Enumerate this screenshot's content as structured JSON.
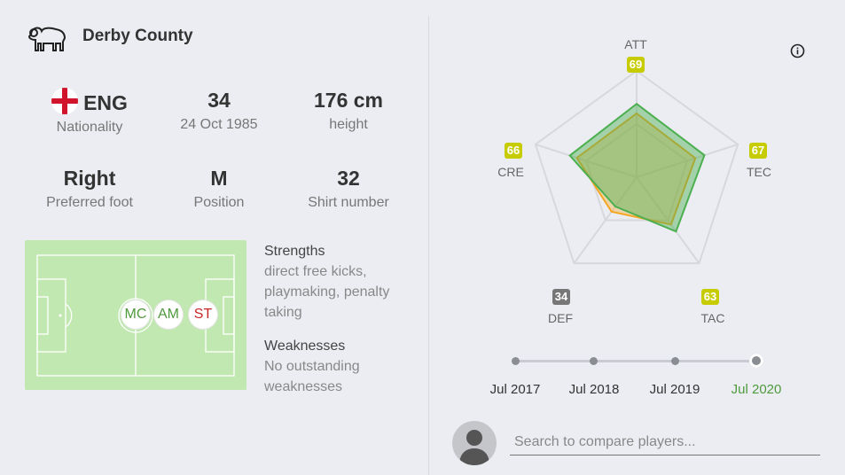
{
  "club": {
    "name": "Derby County",
    "logo_icon": "ram-icon"
  },
  "stats": {
    "nationality": {
      "value": "ENG",
      "label": "Nationality",
      "flag_icon": "england-flag-icon"
    },
    "age": {
      "value": "34",
      "label": "24 Oct 1985"
    },
    "height": {
      "value": "176 cm",
      "label": "height"
    },
    "foot": {
      "value": "Right",
      "label": "Preferred foot"
    },
    "position": {
      "value": "M",
      "label": "Position"
    },
    "shirt": {
      "value": "32",
      "label": "Shirt number"
    }
  },
  "positions": [
    "MC",
    "AM",
    "ST"
  ],
  "strengths": {
    "title": "Strengths",
    "lines": [
      "direct free kicks,",
      "playmaking, penalty",
      "taking"
    ]
  },
  "weaknesses": {
    "title": "Weaknesses",
    "lines": [
      "No outstanding",
      "weaknesses"
    ]
  },
  "radar": {
    "axes": [
      {
        "key": "ATT",
        "value": "69"
      },
      {
        "key": "TEC",
        "value": "67"
      },
      {
        "key": "TAC",
        "value": "63"
      },
      {
        "key": "DEF",
        "value": "34"
      },
      {
        "key": "CRE",
        "value": "66"
      }
    ],
    "series_values": {
      "current": [
        69,
        67,
        63,
        34,
        66
      ],
      "previous": [
        60,
        58,
        55,
        40,
        59
      ]
    },
    "colors": {
      "current": "#4caf50",
      "previous": "#f5a623",
      "badge": "#c7cc00",
      "badge_low": "#777777"
    }
  },
  "timeline": {
    "points": [
      "Jul 2017",
      "Jul 2018",
      "Jul 2019",
      "Jul 2020"
    ],
    "active_index": 3
  },
  "compare": {
    "placeholder": "Search to compare players...",
    "avatar_icon": "player-silhouette-icon"
  },
  "icons": {
    "info": "info-icon"
  }
}
